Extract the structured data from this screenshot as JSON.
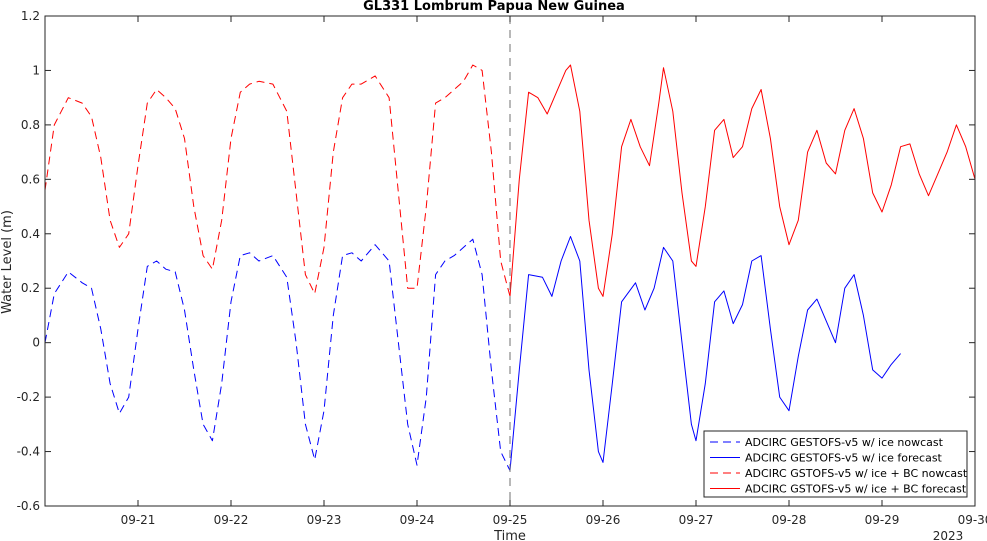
{
  "chart_data": {
    "type": "line",
    "title": "GL331 Lombrum Papua New Guinea",
    "xlabel": "Time",
    "ylabel": "Water Level (m)",
    "year_label": "2023",
    "x_unit": "days since 2023-09-20 00:00",
    "xlim": [
      0.0,
      10.0
    ],
    "ylim": [
      -0.6,
      1.2
    ],
    "x_ticks": [
      1,
      2,
      3,
      4,
      5,
      6,
      7,
      8,
      9,
      10
    ],
    "x_tick_labels": [
      "09-21",
      "09-22",
      "09-23",
      "09-24",
      "09-25",
      "09-26",
      "09-27",
      "09-28",
      "09-29",
      "09-30"
    ],
    "y_ticks": [
      -0.6,
      -0.4,
      -0.2,
      0,
      0.2,
      0.4,
      0.6,
      0.8,
      1,
      1.2
    ],
    "y_tick_labels": [
      "-0.6",
      "-0.4",
      "-0.2",
      "0",
      "0.2",
      "0.4",
      "0.6",
      "0.8",
      "1",
      "1.2"
    ],
    "forecast_start_x": 5.0,
    "grid": false,
    "legend_position": "bottom-right",
    "series": [
      {
        "name": "ADCIRC GESTOFS-v5 w/ ice nowcast",
        "color": "#0000ff",
        "style": "dashed",
        "x": [
          0.0,
          0.1,
          0.25,
          0.4,
          0.5,
          0.6,
          0.7,
          0.8,
          0.9,
          1.0,
          1.1,
          1.2,
          1.3,
          1.4,
          1.5,
          1.6,
          1.7,
          1.8,
          1.9,
          2.0,
          2.1,
          2.2,
          2.3,
          2.45,
          2.6,
          2.7,
          2.8,
          2.9,
          3.0,
          3.1,
          3.2,
          3.3,
          3.4,
          3.55,
          3.7,
          3.8,
          3.9,
          4.0,
          4.1,
          4.2,
          4.3,
          4.4,
          4.5,
          4.6,
          4.7,
          4.8,
          4.9,
          5.0
        ],
        "y": [
          0.0,
          0.18,
          0.26,
          0.22,
          0.2,
          0.05,
          -0.15,
          -0.26,
          -0.2,
          0.05,
          0.28,
          0.3,
          0.27,
          0.26,
          0.12,
          -0.1,
          -0.3,
          -0.36,
          -0.15,
          0.15,
          0.32,
          0.33,
          0.3,
          0.32,
          0.24,
          0.0,
          -0.3,
          -0.43,
          -0.25,
          0.1,
          0.32,
          0.33,
          0.3,
          0.36,
          0.3,
          0.0,
          -0.3,
          -0.45,
          -0.2,
          0.25,
          0.3,
          0.32,
          0.35,
          0.38,
          0.25,
          -0.1,
          -0.4,
          -0.47
        ]
      },
      {
        "name": "ADCIRC GESTOFS-v5 w/ ice forecast",
        "color": "#0000ff",
        "style": "solid",
        "x": [
          5.0,
          5.1,
          5.2,
          5.35,
          5.45,
          5.55,
          5.65,
          5.75,
          5.85,
          5.95,
          6.0,
          6.1,
          6.2,
          6.35,
          6.45,
          6.55,
          6.65,
          6.75,
          6.85,
          6.95,
          7.0,
          7.1,
          7.2,
          7.3,
          7.4,
          7.5,
          7.6,
          7.7,
          7.8,
          7.9,
          8.0,
          8.1,
          8.2,
          8.3,
          8.4,
          8.5,
          8.6,
          8.7,
          8.8,
          8.9,
          9.0,
          9.1,
          9.2
        ],
        "y": [
          -0.47,
          -0.1,
          0.25,
          0.24,
          0.17,
          0.3,
          0.39,
          0.3,
          -0.1,
          -0.4,
          -0.44,
          -0.15,
          0.15,
          0.22,
          0.12,
          0.2,
          0.35,
          0.3,
          0.0,
          -0.3,
          -0.36,
          -0.15,
          0.15,
          0.19,
          0.07,
          0.14,
          0.3,
          0.32,
          0.05,
          -0.2,
          -0.25,
          -0.05,
          0.12,
          0.16,
          0.08,
          0.0,
          0.2,
          0.25,
          0.1,
          -0.1,
          -0.13,
          -0.08,
          -0.04
        ]
      },
      {
        "name": "ADCIRC GSTOFS-v5 w/ ice + BC nowcast",
        "color": "#ff0000",
        "style": "dashed",
        "x": [
          0.0,
          0.1,
          0.25,
          0.4,
          0.5,
          0.6,
          0.7,
          0.8,
          0.9,
          1.0,
          1.1,
          1.2,
          1.3,
          1.4,
          1.5,
          1.6,
          1.7,
          1.8,
          1.9,
          2.0,
          2.1,
          2.2,
          2.3,
          2.45,
          2.6,
          2.7,
          2.8,
          2.9,
          3.0,
          3.1,
          3.2,
          3.3,
          3.4,
          3.55,
          3.7,
          3.8,
          3.9,
          4.0,
          4.1,
          4.2,
          4.3,
          4.4,
          4.5,
          4.6,
          4.7,
          4.8,
          4.9,
          5.0
        ],
        "y": [
          0.56,
          0.8,
          0.9,
          0.88,
          0.83,
          0.68,
          0.45,
          0.35,
          0.4,
          0.65,
          0.88,
          0.93,
          0.9,
          0.86,
          0.75,
          0.5,
          0.32,
          0.27,
          0.45,
          0.75,
          0.92,
          0.95,
          0.96,
          0.95,
          0.85,
          0.55,
          0.25,
          0.18,
          0.35,
          0.7,
          0.9,
          0.95,
          0.95,
          0.98,
          0.9,
          0.55,
          0.2,
          0.2,
          0.5,
          0.88,
          0.9,
          0.93,
          0.96,
          1.02,
          1.0,
          0.7,
          0.3,
          0.17
        ]
      },
      {
        "name": "ADCIRC GSTOFS-v5 w/ ice + BC forecast",
        "color": "#ff0000",
        "style": "solid",
        "x": [
          5.0,
          5.1,
          5.2,
          5.3,
          5.4,
          5.5,
          5.6,
          5.65,
          5.75,
          5.85,
          5.95,
          6.0,
          6.1,
          6.2,
          6.3,
          6.4,
          6.5,
          6.6,
          6.65,
          6.75,
          6.85,
          6.95,
          7.0,
          7.1,
          7.2,
          7.3,
          7.4,
          7.5,
          7.6,
          7.7,
          7.8,
          7.9,
          8.0,
          8.1,
          8.2,
          8.3,
          8.4,
          8.5,
          8.6,
          8.7,
          8.8,
          8.9,
          9.0,
          9.1,
          9.2,
          9.3,
          9.4,
          9.5,
          9.6,
          9.7,
          9.8,
          9.9,
          10.0
        ],
        "y": [
          0.17,
          0.6,
          0.92,
          0.9,
          0.84,
          0.92,
          1.0,
          1.02,
          0.85,
          0.45,
          0.2,
          0.17,
          0.4,
          0.72,
          0.82,
          0.72,
          0.65,
          0.88,
          1.01,
          0.85,
          0.55,
          0.3,
          0.28,
          0.5,
          0.78,
          0.82,
          0.68,
          0.72,
          0.86,
          0.93,
          0.75,
          0.5,
          0.36,
          0.45,
          0.7,
          0.78,
          0.66,
          0.62,
          0.78,
          0.86,
          0.75,
          0.55,
          0.48,
          0.58,
          0.72,
          0.73,
          0.62,
          0.54,
          0.62,
          0.7,
          0.8,
          0.72,
          0.6
        ]
      }
    ]
  }
}
